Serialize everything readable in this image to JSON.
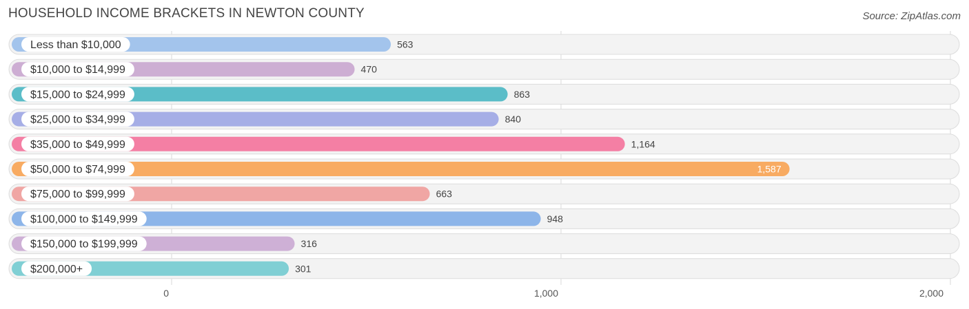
{
  "header": {
    "title": "HOUSEHOLD INCOME BRACKETS IN NEWTON COUNTY",
    "source": "Source: ZipAtlas.com"
  },
  "chart_data": {
    "type": "bar",
    "orientation": "horizontal",
    "title": "HOUSEHOLD INCOME BRACKETS IN NEWTON COUNTY",
    "categories": [
      "Less than $10,000",
      "$10,000 to $14,999",
      "$15,000 to $24,999",
      "$25,000 to $34,999",
      "$35,000 to $49,999",
      "$50,000 to $74,999",
      "$75,000 to $99,999",
      "$100,000 to $149,999",
      "$150,000 to $199,999",
      "$200,000+"
    ],
    "values": [
      563,
      470,
      863,
      840,
      1164,
      1587,
      663,
      948,
      316,
      301
    ],
    "value_labels": [
      "563",
      "470",
      "863",
      "840",
      "1,164",
      "1,587",
      "663",
      "948",
      "316",
      "301"
    ],
    "colors": [
      "#a3c4ec",
      "#cdaed3",
      "#5bbdc8",
      "#a6aee6",
      "#f47fa4",
      "#f8ab62",
      "#f0a6a4",
      "#8db5e9",
      "#ceb0d6",
      "#80cfd4"
    ],
    "xlim": [
      0,
      2000
    ],
    "xticks": [
      0,
      1000,
      2000
    ],
    "xtick_labels": [
      "0",
      "1,000",
      "2,000"
    ],
    "grid": true,
    "legend": "none"
  }
}
